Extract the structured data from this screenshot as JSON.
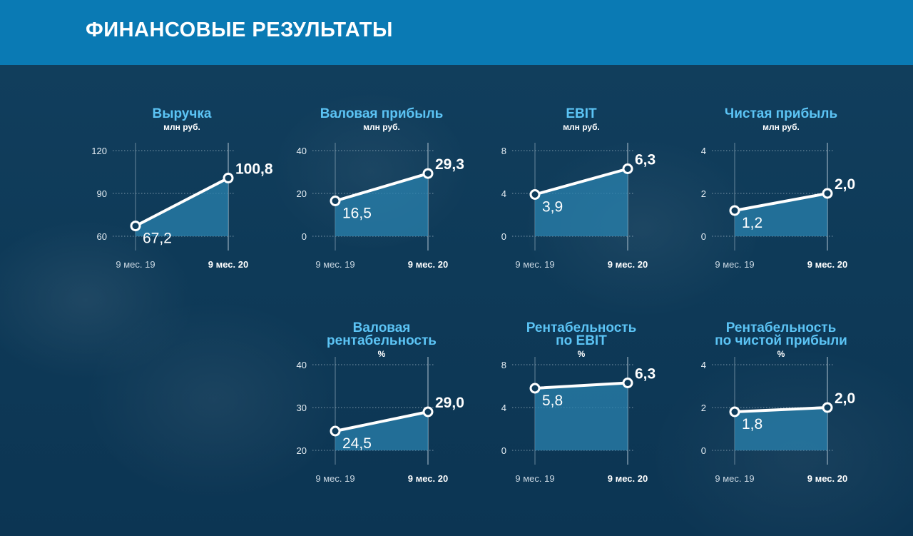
{
  "header": {
    "title": "ФИНАНСОВЫЕ РЕЗУЛЬТАТЫ"
  },
  "colors": {
    "header_bg": "#0a7ab4",
    "title": "#5cc4f5",
    "line": "#ffffff",
    "area": "#2a81ad",
    "grid": "#8fa7b8"
  },
  "chart_data": [
    {
      "type": "line",
      "title": [
        "Выручка"
      ],
      "unit": "млн руб.",
      "categories": [
        "9 мес. 19",
        "9 мес. 20"
      ],
      "values": [
        67.2,
        100.8
      ],
      "value_labels": [
        "67,2",
        "100,8"
      ],
      "yticks": [
        60,
        90,
        120
      ],
      "ylim": [
        60,
        120
      ]
    },
    {
      "type": "line",
      "title": [
        "Валовая прибыль"
      ],
      "unit": "млн руб.",
      "categories": [
        "9 мес. 19",
        "9 мес. 20"
      ],
      "values": [
        16.5,
        29.3
      ],
      "value_labels": [
        "16,5",
        "29,3"
      ],
      "yticks": [
        0,
        20,
        40
      ],
      "ylim": [
        0,
        40
      ]
    },
    {
      "type": "line",
      "title": [
        "EBIT"
      ],
      "unit": "млн руб.",
      "categories": [
        "9 мес. 19",
        "9 мес. 20"
      ],
      "values": [
        3.9,
        6.3
      ],
      "value_labels": [
        "3,9",
        "6,3"
      ],
      "yticks": [
        0,
        4,
        8
      ],
      "ylim": [
        0,
        8
      ]
    },
    {
      "type": "line",
      "title": [
        "Чистая прибыль"
      ],
      "unit": "млн руб.",
      "categories": [
        "9 мес. 19",
        "9 мес. 20"
      ],
      "values": [
        1.2,
        2.0
      ],
      "value_labels": [
        "1,2",
        "2,0"
      ],
      "yticks": [
        0,
        2,
        4
      ],
      "ylim": [
        0,
        4
      ]
    },
    {
      "type": "line",
      "title": [
        "Валовая",
        "рентабельность"
      ],
      "unit": "%",
      "categories": [
        "9 мес. 19",
        "9 мес. 20"
      ],
      "values": [
        24.5,
        29.0
      ],
      "value_labels": [
        "24,5",
        "29,0"
      ],
      "yticks": [
        20,
        30,
        40
      ],
      "ylim": [
        20,
        40
      ]
    },
    {
      "type": "line",
      "title": [
        "Рентабельность",
        "по EBIT"
      ],
      "unit": "%",
      "categories": [
        "9 мес. 19",
        "9 мес. 20"
      ],
      "values": [
        5.8,
        6.3
      ],
      "value_labels": [
        "5,8",
        "6,3"
      ],
      "yticks": [
        0,
        4,
        8
      ],
      "ylim": [
        0,
        8
      ]
    },
    {
      "type": "line",
      "title": [
        "Рентабельность",
        "по чистой прибыли"
      ],
      "unit": "%",
      "categories": [
        "9 мес. 19",
        "9 мес. 20"
      ],
      "values": [
        1.8,
        2.0
      ],
      "value_labels": [
        "1,8",
        "2,0"
      ],
      "yticks": [
        0,
        2,
        4
      ],
      "ylim": [
        0,
        4
      ]
    }
  ]
}
